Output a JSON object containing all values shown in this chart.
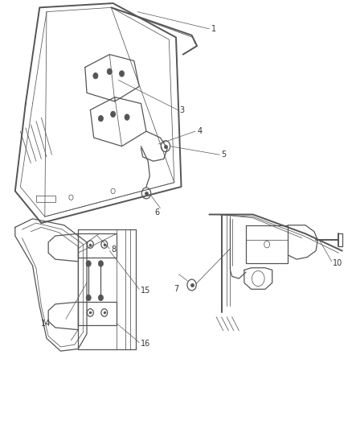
{
  "bg_color": "#ffffff",
  "line_color": "#555555",
  "label_color": "#333333",
  "fig_width": 4.38,
  "fig_height": 5.33,
  "dpi": 100
}
